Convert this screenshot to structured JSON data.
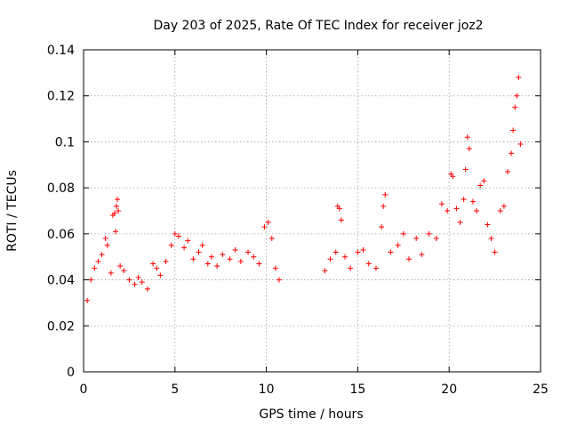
{
  "chart_data": {
    "type": "scatter",
    "title": "Day 203 of 2025, Rate Of TEC Index for receiver joz2",
    "xlabel": "GPS time / hours",
    "ylabel": "ROTI / TECUs",
    "xlim": [
      0,
      25
    ],
    "ylim": [
      0,
      0.14
    ],
    "x_ticks": [
      0,
      5,
      10,
      15,
      20,
      25
    ],
    "x_tick_labels": [
      "0",
      "5",
      "10",
      "15",
      "20",
      "25"
    ],
    "y_ticks": [
      0,
      0.02,
      0.04,
      0.06,
      0.08,
      0.1,
      0.12,
      0.14
    ],
    "y_tick_labels": [
      "0",
      "0.02",
      "0.04",
      "0.06",
      "0.08",
      "0.1",
      "0.12",
      "0.14"
    ],
    "grid": true,
    "marker": "+",
    "marker_color": "#ff0000",
    "data_gap_hours": [
      10.8,
      13.0
    ],
    "series": [
      {
        "name": "ROTI",
        "points": [
          [
            0.2,
            0.031
          ],
          [
            0.4,
            0.04
          ],
          [
            0.6,
            0.045
          ],
          [
            0.8,
            0.048
          ],
          [
            1.0,
            0.051
          ],
          [
            1.2,
            0.058
          ],
          [
            1.3,
            0.055
          ],
          [
            1.5,
            0.043
          ],
          [
            1.6,
            0.068
          ],
          [
            1.7,
            0.069
          ],
          [
            1.75,
            0.061
          ],
          [
            1.8,
            0.072
          ],
          [
            1.85,
            0.075
          ],
          [
            1.9,
            0.07
          ],
          [
            2.0,
            0.046
          ],
          [
            2.2,
            0.044
          ],
          [
            2.5,
            0.04
          ],
          [
            2.8,
            0.038
          ],
          [
            3.0,
            0.041
          ],
          [
            3.2,
            0.039
          ],
          [
            3.5,
            0.036
          ],
          [
            3.8,
            0.047
          ],
          [
            4.0,
            0.045
          ],
          [
            4.2,
            0.042
          ],
          [
            4.5,
            0.048
          ],
          [
            4.8,
            0.055
          ],
          [
            5.0,
            0.06
          ],
          [
            5.2,
            0.059
          ],
          [
            5.5,
            0.054
          ],
          [
            5.7,
            0.057
          ],
          [
            6.0,
            0.049
          ],
          [
            6.3,
            0.052
          ],
          [
            6.5,
            0.055
          ],
          [
            6.8,
            0.047
          ],
          [
            7.0,
            0.05
          ],
          [
            7.3,
            0.046
          ],
          [
            7.6,
            0.051
          ],
          [
            8.0,
            0.049
          ],
          [
            8.3,
            0.053
          ],
          [
            8.6,
            0.048
          ],
          [
            9.0,
            0.052
          ],
          [
            9.3,
            0.05
          ],
          [
            9.6,
            0.047
          ],
          [
            9.9,
            0.063
          ],
          [
            10.1,
            0.065
          ],
          [
            10.3,
            0.058
          ],
          [
            10.5,
            0.045
          ],
          [
            10.7,
            0.04
          ],
          [
            13.2,
            0.044
          ],
          [
            13.5,
            0.049
          ],
          [
            13.8,
            0.052
          ],
          [
            13.9,
            0.072
          ],
          [
            14.0,
            0.071
          ],
          [
            14.1,
            0.066
          ],
          [
            14.3,
            0.05
          ],
          [
            14.6,
            0.045
          ],
          [
            15.0,
            0.052
          ],
          [
            15.3,
            0.053
          ],
          [
            15.6,
            0.047
          ],
          [
            16.0,
            0.045
          ],
          [
            16.3,
            0.063
          ],
          [
            16.4,
            0.072
          ],
          [
            16.5,
            0.077
          ],
          [
            16.8,
            0.052
          ],
          [
            17.2,
            0.055
          ],
          [
            17.5,
            0.06
          ],
          [
            17.8,
            0.049
          ],
          [
            18.2,
            0.058
          ],
          [
            18.5,
            0.051
          ],
          [
            18.9,
            0.06
          ],
          [
            19.3,
            0.058
          ],
          [
            19.6,
            0.073
          ],
          [
            19.9,
            0.07
          ],
          [
            20.1,
            0.086
          ],
          [
            20.2,
            0.085
          ],
          [
            20.4,
            0.071
          ],
          [
            20.6,
            0.065
          ],
          [
            20.8,
            0.075
          ],
          [
            20.9,
            0.088
          ],
          [
            21.0,
            0.102
          ],
          [
            21.1,
            0.097
          ],
          [
            21.3,
            0.074
          ],
          [
            21.5,
            0.07
          ],
          [
            21.7,
            0.081
          ],
          [
            21.9,
            0.083
          ],
          [
            22.1,
            0.064
          ],
          [
            22.3,
            0.058
          ],
          [
            22.5,
            0.052
          ],
          [
            22.8,
            0.07
          ],
          [
            23.0,
            0.072
          ],
          [
            23.2,
            0.087
          ],
          [
            23.4,
            0.095
          ],
          [
            23.5,
            0.105
          ],
          [
            23.6,
            0.115
          ],
          [
            23.7,
            0.12
          ],
          [
            23.8,
            0.128
          ],
          [
            23.9,
            0.099
          ]
        ]
      }
    ]
  }
}
